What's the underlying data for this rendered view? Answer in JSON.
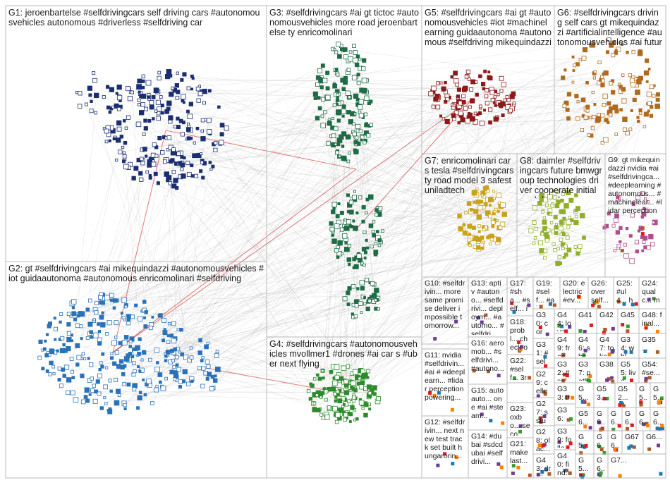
{
  "groups": [
    {
      "id": "g1",
      "title": "G1: jeroenbartelse #selfdrivingcars self driving cars #autonomousvehicles autonomous #driverless #selfdriving car",
      "color": "#1b2f70"
    },
    {
      "id": "g2",
      "title": "G2: gt #selfdrivingcars #ai mikequindazzi #autonomousvehicles #iot guidaautonoma #autonomous enricomolinari #selfdriving",
      "color": "#2a72b8"
    },
    {
      "id": "g3",
      "title": "G3: #selfdrivingcars #ai gt tictoc #autonomousvehicles more road jeroenbartelse ty enricomolinari",
      "color": "#1f6b45"
    },
    {
      "id": "g4",
      "title": "G4: #selfdrivingcars #autonomousvehicles mvollmer1 #drones #ai car s #uber next flying",
      "color": "#2d8a2d"
    },
    {
      "id": "g5",
      "title": "G5: #selfdrivingcars #ai gt #autonomousvehicles #iot #machinelearning guidaautonoma #autonomous #selfdriving mikequindazzi",
      "color": "#8b1a1a"
    },
    {
      "id": "g6",
      "title": "G6: #selfdrivingcars driving self cars gt mikequindazzi #artificialintelligence #autonomousvehicles #ai future",
      "color": "#b06a1e"
    },
    {
      "id": "g7",
      "title": "G7: enricomolinari cars tesla #selfdrivingcars ty road model 3 safest uniladtech",
      "color": "#c9a21a"
    },
    {
      "id": "g8",
      "title": "G8: daimler #selfdrivingcars future bmwgroup technologies driver cooperate initial goal develop",
      "color": "#8fae2a"
    },
    {
      "id": "g9",
      "title": "G9: gt mikequindazzi nvidia #ai #selfdrivingca... #deeplearning #autonomous... #machinelear... #lidar perception",
      "color": "#b04d8c"
    },
    {
      "id": "g10",
      "title": "G10: #selfdrivin... more same promise deliver impossible tomorrow..."
    },
    {
      "id": "g11",
      "title": "G11: nvidia #selfdrivin... #ai # #deeplearn... #lidar perception powering..."
    },
    {
      "id": "g12",
      "title": "G12: #selfdrivin... next new test track set built hungarorin..."
    },
    {
      "id": "g13",
      "title": "G13: aptiv #autono... #selfdrivi... deploym... #automo... #selfdri..."
    },
    {
      "id": "g14",
      "title": "G14: #dubai #sdcdubai #selfdrivi..."
    },
    {
      "id": "g15",
      "title": "G15: autoauto... one #ai #steam..."
    },
    {
      "id": "g16",
      "title": "G16: aeromob... #selfdrivi... #autono..."
    },
    {
      "id": "g17",
      "title": "G17: #sha... #self... incre... part..."
    },
    {
      "id": "g18",
      "title": "G18: probl... check out..."
    },
    {
      "id": "g19",
      "title": "G19: #self... #ai..."
    },
    {
      "id": "g20",
      "title": "G20: electric #ev..."
    },
    {
      "id": "g21",
      "title": "G21: make last..."
    },
    {
      "id": "g22",
      "title": "G22: #self... 3rev..."
    },
    {
      "id": "g23",
      "title": "G23: oxbo... seco..."
    },
    {
      "id": "g24",
      "title": "G24: qualc... more..."
    },
    {
      "id": "g25",
      "title": "G25: #ul4... hear..."
    },
    {
      "id": "g26",
      "title": "G26: over self..."
    },
    {
      "id": "g27",
      "title": "G27: s stud..."
    },
    {
      "id": "g28",
      "title": "G28: olac... laun..."
    },
    {
      "id": "g29",
      "title": "G29: cellu #iot..."
    },
    {
      "id": "g30",
      "title": "G30: core... sul..."
    },
    {
      "id": "g31",
      "title": "G31: #self... cove..."
    },
    {
      "id": "g32",
      "title": "G32: #self... pathf..."
    },
    {
      "id": "g33",
      "title": "G33: trav..."
    },
    {
      "id": "g34",
      "title": "G34: whlb..."
    },
    {
      "id": "g35",
      "title": "G35 ..."
    },
    {
      "id": "g36",
      "title": "G36: 一日..."
    },
    {
      "id": "g37",
      "title": "G37: pathf..."
    },
    {
      "id": "g38",
      "title": "G38"
    },
    {
      "id": "g39",
      "title": "G39: follo..."
    },
    {
      "id": "g40",
      "title": "G40: find..."
    },
    {
      "id": "g41",
      "title": "G41"
    },
    {
      "id": "g42",
      "title": "G42"
    },
    {
      "id": "g43",
      "title": "G43: drivi..."
    },
    {
      "id": "g44",
      "title": "G44: love..."
    },
    {
      "id": "g45",
      "title": "G45"
    },
    {
      "id": "g46",
      "title": "G46: sha..."
    },
    {
      "id": "g47",
      "title": "G47: toka..."
    },
    {
      "id": "g48",
      "title": "G48: final..."
    },
    {
      "id": "g49",
      "title": "G49: free..."
    },
    {
      "id": "g50",
      "title": "G5... #s..."
    },
    {
      "id": "g51",
      "title": "G5..."
    },
    {
      "id": "g52",
      "title": "G52..."
    },
    {
      "id": "g53",
      "title": "G53..."
    },
    {
      "id": "g54",
      "title": "G54: #se..."
    },
    {
      "id": "g55",
      "title": "G55: live..."
    },
    {
      "id": "g56",
      "title": "G56..."
    },
    {
      "id": "g57",
      "title": "G5... sel..."
    },
    {
      "id": "g58",
      "title": "G5..."
    },
    {
      "id": "g59",
      "title": "G5..."
    },
    {
      "id": "g60",
      "title": "G6..."
    },
    {
      "id": "g61",
      "title": "G6..."
    },
    {
      "id": "g62",
      "title": "G6..."
    },
    {
      "id": "g63",
      "title": "G6..."
    },
    {
      "id": "g64",
      "title": "G6..."
    },
    {
      "id": "g65",
      "title": "G6..."
    },
    {
      "id": "g66",
      "title": "G6..."
    },
    {
      "id": "g67",
      "title": "G67"
    },
    {
      "id": "g68",
      "title": "G6..."
    },
    {
      "id": "g69",
      "title": "G6..."
    },
    {
      "id": "g70",
      "title": "G7..."
    }
  ]
}
